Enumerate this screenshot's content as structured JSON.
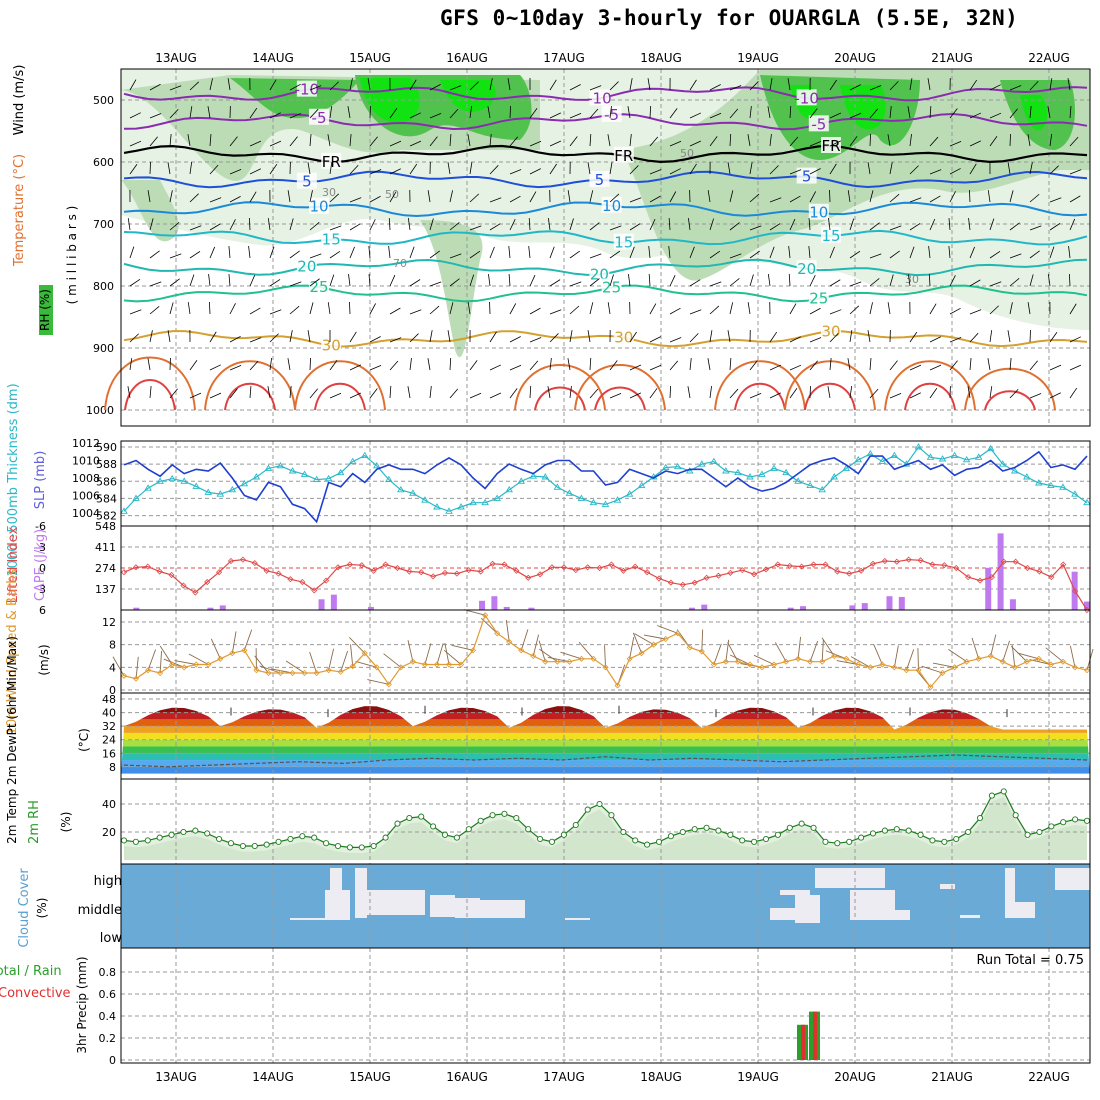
{
  "title": "GFS 0~10day 3-hourly for OUARGLA (5.5E, 32N)",
  "dates": [
    "13AUG",
    "14AUG",
    "15AUG",
    "16AUG",
    "17AUG",
    "18AUG",
    "19AUG",
    "20AUG",
    "21AUG",
    "22AUG"
  ],
  "colors": {
    "grid": "#999999",
    "rh_light": "#e6f2e4",
    "rh_mid": "#bcdcb6",
    "rh_green": "#52c24f",
    "rh_bright": "#12e212",
    "cloud_blue": "#6aaad6",
    "cloud_white": "#ececf2",
    "precip_green": "#2aa02a",
    "precip_red": "#e03030",
    "slp": "#1f3fd0",
    "thick": "#2ab8c8",
    "li": "#e04848",
    "cape": "#c07af0",
    "wind": "#e09a30",
    "rh2m": "#1e7a1e"
  },
  "chart_data": [
    {
      "type": "contour",
      "panel": "upper-air",
      "ylabel_parts": [
        "RH (%)",
        "Temperature (°C)",
        "Wind (m/s)"
      ],
      "yunit": "( m i l l i b a r s )",
      "yticks": [
        "500",
        "600",
        "700",
        "800",
        "900",
        "1000"
      ],
      "ylim": [
        1050,
        450
      ],
      "temperature_contours": [
        {
          "label": "-10",
          "pressure": 490
        },
        {
          "label": "-5",
          "pressure": 535
        },
        {
          "label": "FR",
          "pressure": 587
        },
        {
          "label": "5",
          "pressure": 628
        },
        {
          "label": "10",
          "pressure": 676
        },
        {
          "label": "15",
          "pressure": 722
        },
        {
          "label": "20",
          "pressure": 770
        },
        {
          "label": "25",
          "pressure": 812
        },
        {
          "label": "30",
          "pressure": 885
        }
      ],
      "rh_labels": [
        "30",
        "50",
        "70"
      ],
      "grid": true
    },
    {
      "type": "line",
      "panel": "slp-thickness",
      "ylabel_left": "1000~500mb Thickness (dm)",
      "ylabel_right": "SLP (mb)",
      "yticks_left": [
        "582",
        "584",
        "586",
        "588",
        "590"
      ],
      "yticks_right": [
        "1004",
        "1006",
        "1008",
        "1010",
        "1012"
      ],
      "series": [
        {
          "name": "SLP (mb)",
          "values": [
            1009.5,
            1010,
            1009,
            1008.2,
            1009.5,
            1008.5,
            1009,
            1008.8,
            1009.7,
            1008,
            1006,
            1005.5,
            1007.5,
            1007,
            1005,
            1004.5,
            1003,
            1007.5,
            1007,
            1008.5,
            1007.5,
            1009,
            1009.5,
            1009,
            1009,
            1008.5,
            1009.5,
            1010.3,
            1009.5,
            1008,
            1006.8,
            1008.5,
            1009.6,
            1009,
            1008.5,
            1009.5,
            1010,
            1010,
            1008.8,
            1008.8,
            1007.2,
            1007.5,
            1009,
            1008.5,
            1008,
            1008.8,
            1008.5,
            1009,
            1009,
            1008,
            1007,
            1008,
            1007,
            1006.5,
            1006.8,
            1007.5,
            1008.5,
            1009.5,
            1010,
            1010.3,
            1009.5,
            1008.5,
            1010.5,
            1010.5,
            1009,
            1009.5,
            1010,
            1009,
            1009.5,
            1008.3,
            1009,
            1009.2,
            1010,
            1008.8,
            1009.2,
            1010,
            1011,
            1009.2,
            1009.5,
            1009,
            1010.5
          ]
        },
        {
          "name": "Thickness (dm)",
          "values": [
            582.5,
            584,
            585.2,
            586,
            586.3,
            586,
            585.4,
            584.7,
            584.5,
            585,
            585.7,
            586.5,
            587.5,
            587.8,
            587.2,
            586.8,
            586.2,
            586.3,
            587,
            588.3,
            589,
            587.8,
            586.2,
            585,
            584.6,
            583.8,
            583,
            582.5,
            583,
            583.5,
            583.5,
            584,
            585,
            586,
            586.6,
            586.5,
            585.3,
            584.6,
            584,
            583.5,
            583.3,
            583.8,
            584.5,
            585.5,
            586.5,
            587.6,
            587.7,
            587.2,
            588,
            588.3,
            587.2,
            587,
            586.5,
            586.8,
            587.5,
            587,
            586,
            585.5,
            585,
            586.5,
            587.5,
            588.5,
            589.2,
            588.3,
            589,
            588,
            590,
            588.8,
            588.6,
            589,
            588.5,
            588.8,
            589.8,
            588,
            587.2,
            586.5,
            585.8,
            585.5,
            585.3,
            584.5,
            583.5
          ]
        }
      ]
    },
    {
      "type": "line",
      "panel": "lifted-index-cape",
      "ylabel_left": "Lifted Index",
      "ylabel_right": "CAPE (J/kg)",
      "yticks_left": [
        "-6",
        "-3",
        "0",
        "3",
        "6"
      ],
      "yticks_right": [
        "548",
        "411",
        "274",
        "137"
      ],
      "series": [
        {
          "name": "Lifted Index",
          "values": [
            0.6,
            -0.1,
            -0.2,
            0.5,
            1,
            2.5,
            3.5,
            2,
            0.6,
            -1,
            -1.2,
            -0.7,
            0.4,
            0.8,
            1.6,
            2,
            3.2,
            1.8,
            -0.1,
            -0.5,
            -0.4,
            0.4,
            -0.5,
            0,
            0.5,
            0.6,
            1.2,
            0.7,
            0.8,
            0.3,
            0.5,
            -0.6,
            -0.5,
            0.4,
            1.4,
            0.9,
            -0.1,
            -0.1,
            0.3,
            -0.1,
            0,
            -0.5,
            0.4,
            -0.2,
            0.6,
            1.5,
            2.1,
            2.4,
            2.1,
            1.4,
            1.1,
            0.7,
            0.3,
            0.9,
            0.2,
            -0.5,
            -0.3,
            -0.2,
            -0.5,
            -0.5,
            0.5,
            0.8,
            0.4,
            -0.6,
            -1,
            -0.9,
            -1.2,
            -1.1,
            -0.5,
            -0.4,
            0,
            1.3,
            1.8,
            1.3,
            -0.9,
            -0.9,
            0,
            0.5,
            1.3,
            -0.5,
            3.3,
            6
          ]
        },
        {
          "name": "CAPE (J/kg)",
          "values": [
            0,
            15,
            0,
            0,
            0,
            0,
            0,
            15,
            30,
            0,
            0,
            0,
            0,
            0,
            0,
            0,
            70,
            100,
            0,
            0,
            20,
            0,
            0,
            0,
            0,
            0,
            0,
            0,
            0,
            60,
            90,
            20,
            0,
            15,
            0,
            0,
            0,
            0,
            0,
            0,
            0,
            0,
            0,
            0,
            0,
            0,
            15,
            35,
            0,
            0,
            0,
            0,
            0,
            0,
            15,
            25,
            0,
            0,
            0,
            30,
            45,
            0,
            90,
            85,
            0,
            0,
            0,
            0,
            0,
            0,
            275,
            500,
            70,
            0,
            0,
            0,
            0,
            250,
            55
          ]
        }
      ]
    },
    {
      "type": "line",
      "panel": "10m-wind",
      "ylabel": "10m Wind Speed & Barbs",
      "yunit": "(m/s)",
      "yticks": [
        "0",
        "4",
        "8",
        "12"
      ],
      "values": [
        2.5,
        2,
        3.5,
        3,
        4.5,
        4,
        4.5,
        4.5,
        5.5,
        6.5,
        7,
        3.5,
        3,
        3,
        3,
        3,
        3,
        3.5,
        3.2,
        4.2,
        6.5,
        4,
        1,
        4,
        5,
        4.5,
        4.5,
        4.5,
        4.5,
        7,
        13.2,
        10,
        8.5,
        7,
        6,
        5,
        5,
        5,
        5.5,
        5.5,
        4,
        0.8,
        5.5,
        6.5,
        8,
        9,
        10,
        7.5,
        6.8,
        4.5,
        5,
        5,
        4.5,
        4,
        4.5,
        5,
        5.5,
        5,
        5,
        6,
        5.5,
        4.5,
        4,
        4.5,
        4,
        3.5,
        3.5,
        0.5,
        3,
        4,
        5,
        5.5,
        6,
        5,
        4,
        5,
        5.5,
        4.5,
        5,
        4,
        3.5
      ]
    },
    {
      "type": "area",
      "panel": "2m-temp",
      "ylabel": "2m Temp 2m DewPt (6hr Min/Max)",
      "yunit": "(°C)",
      "yticks": [
        "8",
        "16",
        "24",
        "32",
        "40",
        "48"
      ],
      "temperature_max": [
        43,
        42,
        44,
        43,
        44,
        42,
        43,
        43,
        42
      ],
      "temperature_min": [
        32,
        32,
        31,
        32,
        31,
        31,
        31,
        31,
        30
      ],
      "dewpoint": [
        9,
        8,
        9,
        10,
        11,
        10,
        12,
        13,
        12,
        13,
        12,
        14,
        12,
        13,
        12,
        11,
        12,
        13,
        14,
        15,
        14,
        13,
        12
      ]
    },
    {
      "type": "area",
      "panel": "2m-rh",
      "ylabel": "2m RH",
      "yunit": "(%)",
      "yticks": [
        "20",
        "40"
      ],
      "values": [
        14,
        13,
        14,
        16,
        18,
        20,
        21,
        19,
        15,
        12,
        10,
        10,
        11,
        13,
        15,
        17,
        16,
        12,
        10,
        9,
        9,
        10,
        16,
        26,
        30,
        31,
        24,
        18,
        16,
        22,
        28,
        32,
        33,
        30,
        22,
        15,
        13,
        18,
        25,
        36,
        40,
        32,
        20,
        14,
        11,
        13,
        17,
        20,
        22,
        23,
        21,
        18,
        14,
        13,
        15,
        18,
        23,
        26,
        23,
        13,
        12,
        13,
        16,
        19,
        21,
        22,
        21,
        18,
        14,
        13,
        15,
        20,
        30,
        46,
        49,
        32,
        18,
        20,
        24,
        27,
        29,
        28
      ]
    },
    {
      "type": "heatmap",
      "panel": "cloud-cover",
      "ylabel": "Cloud Cover",
      "yunit": "(%)",
      "levels": [
        "high",
        "middle",
        "low"
      ]
    },
    {
      "type": "bar",
      "panel": "3hr-precip",
      "ylabel_parts": [
        "Total / Rain",
        "Convective"
      ],
      "yunit": "3hr Precip (mm)",
      "yticks": [
        "0",
        "0.2",
        "0.4",
        "0.6",
        "0.8"
      ],
      "run_total_text": "Run Total = 0.75",
      "bars": [
        {
          "date": "19AUG 09Z",
          "total": 0.32,
          "convective": 0.32
        },
        {
          "date": "19AUG 12Z",
          "total": 0.44,
          "convective": 0.44
        }
      ]
    }
  ]
}
